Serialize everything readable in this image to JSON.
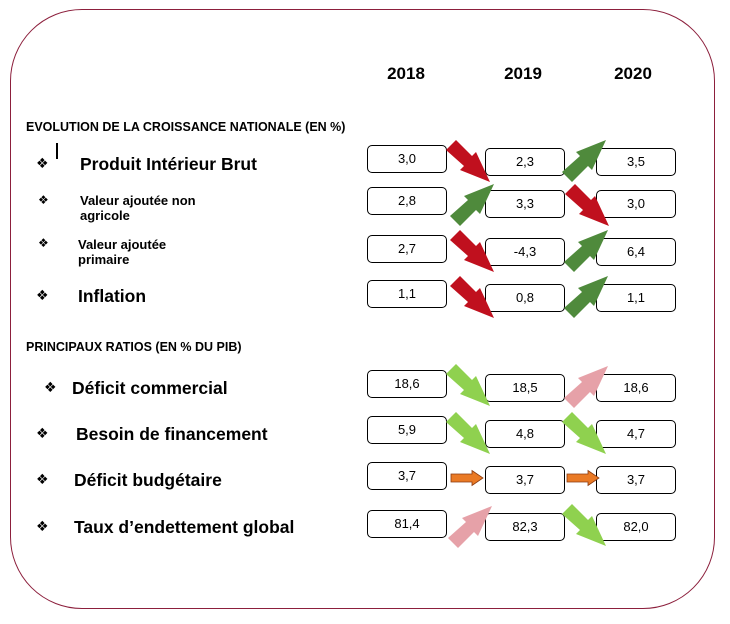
{
  "years": [
    "2018",
    "2019",
    "2020"
  ],
  "sections": [
    {
      "title": "EVOLUTION DE LA CROISSANCE NATIONALE (EN %)",
      "rows": [
        {
          "bullet": "❖",
          "label": "Produit Intérieur Brut",
          "values": [
            "3,0",
            "2,3",
            "3,5"
          ],
          "arrows": [
            "down-red",
            "up-darkgreen"
          ]
        },
        {
          "bullet": "❖",
          "label": "Valeur ajoutée non agricole",
          "label_lines": [
            "Valeur ajoutée non",
            "agricole"
          ],
          "values": [
            "2,8",
            "3,3",
            "3,0"
          ],
          "arrows": [
            "up-darkgreen",
            "down-red"
          ]
        },
        {
          "bullet": "❖",
          "label": "Valeur ajoutée primaire",
          "label_lines": [
            "Valeur ajoutée",
            "primaire"
          ],
          "values": [
            "2,7",
            "-4,3",
            "6,4"
          ],
          "arrows": [
            "down-red",
            "up-darkgreen"
          ]
        },
        {
          "bullet": "❖",
          "label": "Inflation",
          "values": [
            "1,1",
            "0,8",
            "1,1"
          ],
          "arrows": [
            "down-red",
            "up-darkgreen"
          ]
        }
      ]
    },
    {
      "title": "PRINCIPAUX RATIOS (EN % DU PIB)",
      "rows": [
        {
          "bullet": "❖",
          "label": "Déficit commercial",
          "values": [
            "18,6",
            "18,5",
            "18,6"
          ],
          "arrows": [
            "down-lightgreen",
            "up-pink"
          ]
        },
        {
          "bullet": "❖",
          "label": "Besoin de financement",
          "values": [
            "5,9",
            "4,8",
            "4,7"
          ],
          "arrows": [
            "down-lightgreen",
            "down-lightgreen"
          ]
        },
        {
          "bullet": "❖",
          "label": "Déficit budgétaire",
          "values": [
            "3,7",
            "3,7",
            "3,7"
          ],
          "arrows": [
            "flat-orange",
            "flat-orange"
          ]
        },
        {
          "bullet": "❖",
          "label": "Taux d’endettement global",
          "values": [
            "81,4",
            "82,3",
            "82,0"
          ],
          "arrows": [
            "up-pink",
            "down-lightgreen"
          ]
        }
      ]
    }
  ],
  "colors": {
    "frame": "#8c1f3c",
    "red": "#c0101e",
    "darkgreen": "#4f8a3c",
    "lightgreen": "#8fd14f",
    "pink": "#e6a1a8",
    "orange": "#ea7a25"
  }
}
